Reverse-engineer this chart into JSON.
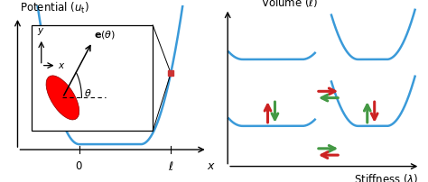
{
  "curve_color": "#3a9ad9",
  "curve_lw": 1.8,
  "bg_color": "#ffffff",
  "arrow_red": "#cc2222",
  "arrow_green": "#449944"
}
